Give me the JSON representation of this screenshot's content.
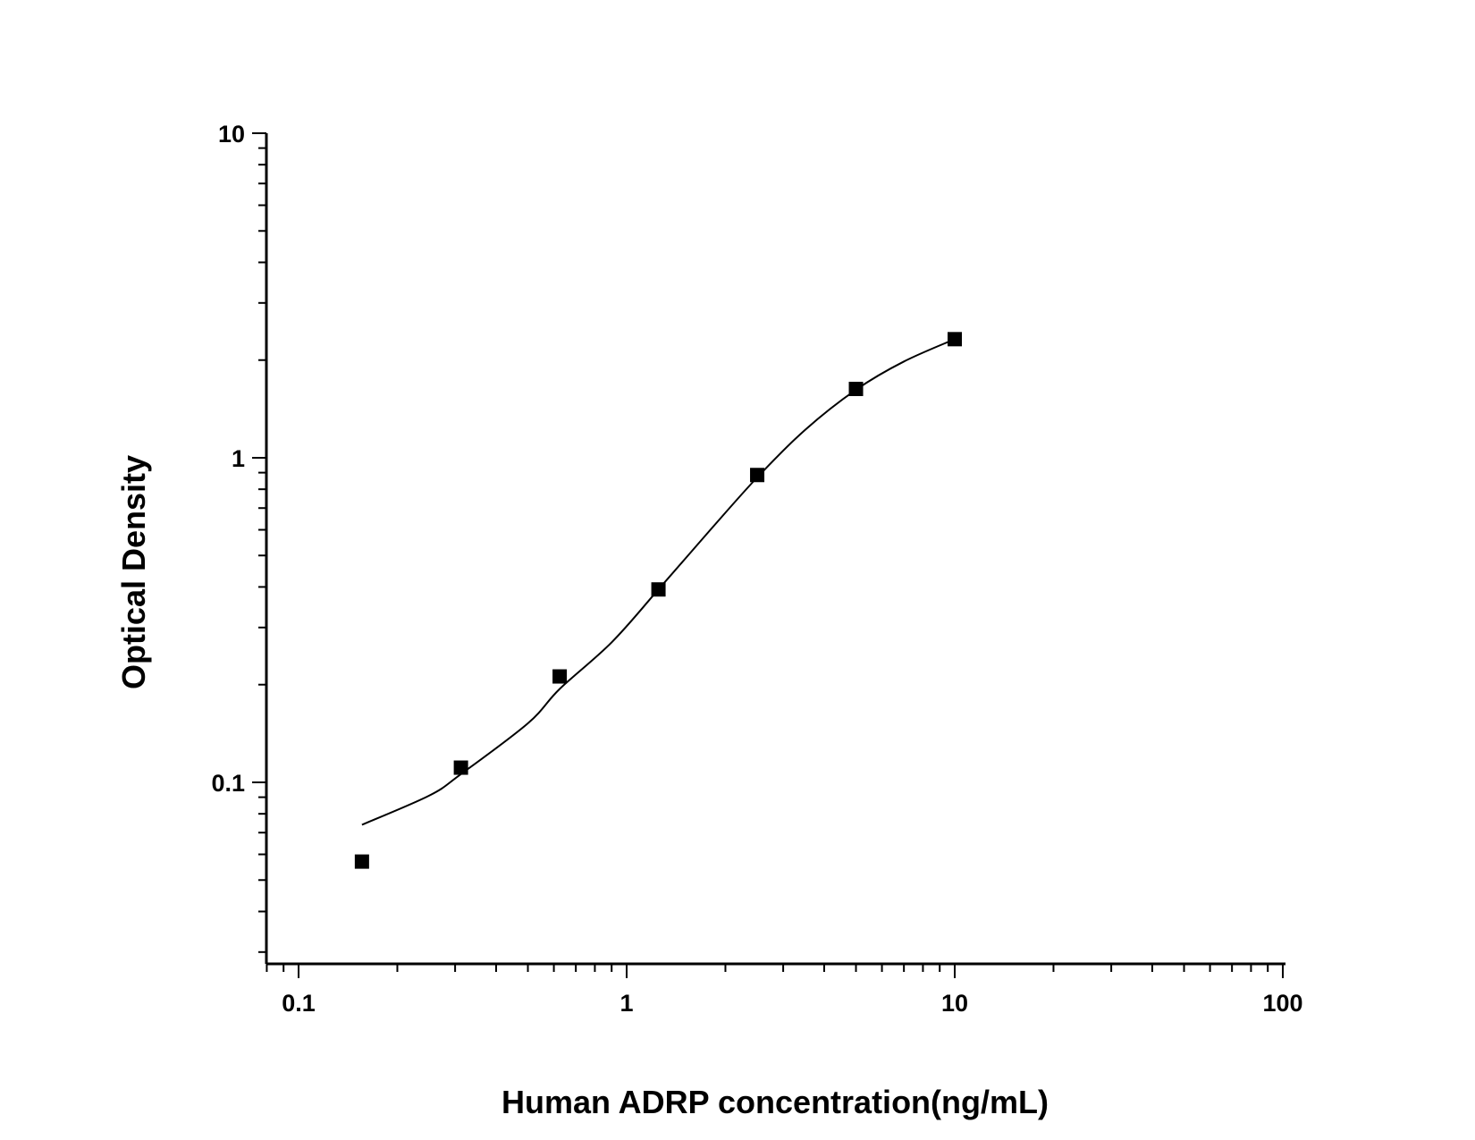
{
  "chart_data": {
    "type": "scatter",
    "title": "",
    "xlabel": "Human ADRP concentration(ng/mL)",
    "ylabel": "Optical Density",
    "xscale": "log",
    "yscale": "log",
    "xlim": [
      0.08,
      100
    ],
    "ylim": [
      0.03,
      10
    ],
    "grid": false,
    "legend": "none",
    "x_ticks": [
      {
        "value": 0.1,
        "label": "0.1"
      },
      {
        "value": 1,
        "label": "1"
      },
      {
        "value": 10,
        "label": "10"
      },
      {
        "value": 100,
        "label": "100"
      }
    ],
    "y_ticks": [
      {
        "value": 0.1,
        "label": "0.1"
      },
      {
        "value": 1,
        "label": "1"
      },
      {
        "value": 10,
        "label": "10"
      }
    ],
    "series": [
      {
        "marker": "square",
        "color": "#000000",
        "points": [
          {
            "x": 0.156,
            "y": 0.057
          },
          {
            "x": 0.3125,
            "y": 0.111
          },
          {
            "x": 0.625,
            "y": 0.212
          },
          {
            "x": 1.25,
            "y": 0.393
          },
          {
            "x": 2.5,
            "y": 0.885
          },
          {
            "x": 5,
            "y": 1.63
          },
          {
            "x": 10,
            "y": 2.32
          }
        ]
      }
    ],
    "fit_curve": {
      "color": "#000000",
      "points": [
        {
          "x": 0.156,
          "y": 0.074
        },
        {
          "x": 0.25,
          "y": 0.091
        },
        {
          "x": 0.3125,
          "y": 0.106
        },
        {
          "x": 0.5,
          "y": 0.152
        },
        {
          "x": 0.625,
          "y": 0.194
        },
        {
          "x": 0.9,
          "y": 0.27
        },
        {
          "x": 1.25,
          "y": 0.393
        },
        {
          "x": 1.8,
          "y": 0.6
        },
        {
          "x": 2.5,
          "y": 0.87
        },
        {
          "x": 3.5,
          "y": 1.22
        },
        {
          "x": 5,
          "y": 1.62
        },
        {
          "x": 7,
          "y": 1.98
        },
        {
          "x": 10,
          "y": 2.32
        }
      ]
    }
  }
}
